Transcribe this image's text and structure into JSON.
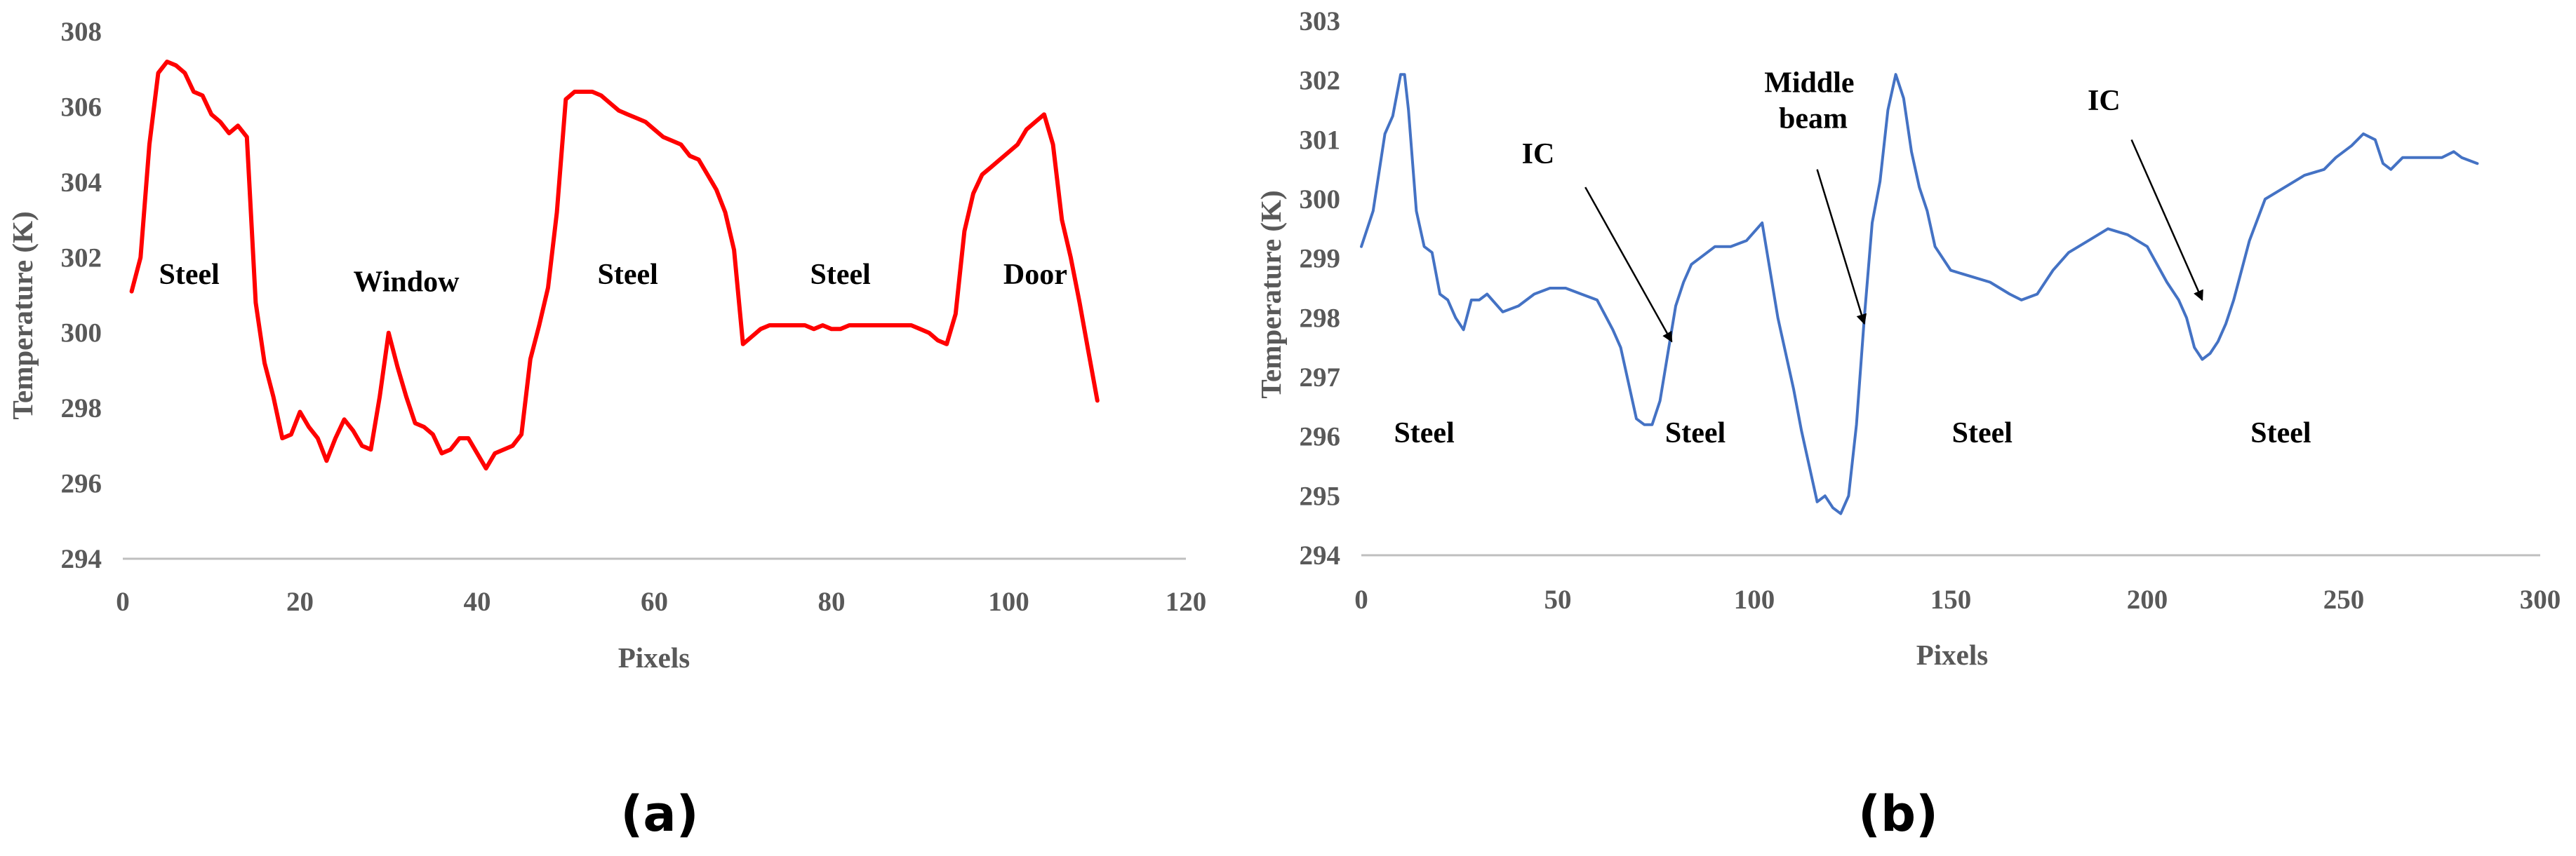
{
  "colors": {
    "series_a": "#ff0000",
    "series_b": "#4472c4",
    "axis": "#bfbfbf",
    "text": "#595959"
  },
  "chart_data": [
    {
      "type": "line",
      "caption": "(a)",
      "xlabel": "Pixels",
      "ylabel": "Temperature (K)",
      "xlim": [
        0,
        120
      ],
      "ylim": [
        294,
        308
      ],
      "xticks": [
        0,
        20,
        40,
        60,
        80,
        100,
        120
      ],
      "yticks": [
        294,
        296,
        298,
        300,
        302,
        304,
        306,
        308
      ],
      "grid": false,
      "series": [
        {
          "color": "#ff0000",
          "x": [
            1,
            2,
            3,
            4,
            5,
            6,
            7,
            8,
            9,
            10,
            11,
            12,
            13,
            14,
            15,
            16,
            17,
            18,
            19,
            20,
            21,
            22,
            23,
            24,
            25,
            26,
            27,
            28,
            29,
            30,
            31,
            32,
            33,
            34,
            35,
            36,
            37,
            38,
            39,
            40,
            41,
            42,
            43,
            44,
            45,
            46,
            47,
            48,
            49,
            50,
            51,
            52,
            53,
            54,
            55,
            56,
            57,
            58,
            59,
            60,
            61,
            62,
            63,
            64,
            65,
            66,
            67,
            68,
            69,
            70,
            71,
            72,
            73,
            74,
            75,
            76,
            77,
            78,
            79,
            80,
            81,
            82,
            83,
            84,
            85,
            86,
            87,
            88,
            89,
            90,
            91,
            92,
            93,
            94,
            95,
            96,
            97,
            98,
            99,
            100,
            101,
            102,
            103,
            104,
            105,
            106,
            107,
            108,
            109,
            110
          ],
          "y": [
            301.1,
            302.0,
            305.0,
            306.9,
            307.2,
            307.1,
            306.9,
            306.4,
            306.3,
            305.8,
            305.6,
            305.3,
            305.5,
            305.2,
            300.8,
            299.2,
            298.3,
            297.2,
            297.3,
            297.9,
            297.5,
            297.2,
            296.6,
            297.2,
            297.7,
            297.4,
            297.0,
            296.9,
            298.3,
            300.0,
            299.1,
            298.3,
            297.6,
            297.5,
            297.3,
            296.8,
            296.9,
            297.2,
            297.2,
            296.8,
            296.4,
            296.8,
            296.9,
            297.0,
            297.3,
            299.3,
            300.2,
            301.2,
            303.2,
            306.2,
            306.4,
            306.4,
            306.4,
            306.3,
            306.1,
            305.9,
            305.8,
            305.7,
            305.6,
            305.4,
            305.2,
            305.1,
            305.0,
            304.7,
            304.6,
            304.2,
            303.8,
            303.2,
            302.2,
            299.7,
            299.9,
            300.1,
            300.2,
            300.2,
            300.2,
            300.2,
            300.2,
            300.1,
            300.2,
            300.1,
            300.1,
            300.2,
            300.2,
            300.2,
            300.2,
            300.2,
            300.2,
            300.2,
            300.2,
            300.1,
            300.0,
            299.8,
            299.7,
            300.5,
            302.7,
            303.7,
            304.2,
            304.4,
            304.6,
            304.8,
            305.0,
            305.4,
            305.6,
            305.8,
            305.0,
            303.0,
            302.0,
            300.8,
            299.5,
            298.2
          ]
        }
      ],
      "annotations": [
        {
          "text": "Steel",
          "x": 7.5,
          "y": 301.3
        },
        {
          "text": "Window",
          "x": 32,
          "y": 301.1
        },
        {
          "text": "Steel",
          "x": 57,
          "y": 301.3
        },
        {
          "text": "Steel",
          "x": 81,
          "y": 301.3
        },
        {
          "text": "Door",
          "x": 103,
          "y": 301.3
        }
      ]
    },
    {
      "type": "line",
      "caption": "(b)",
      "xlabel": "Pixels",
      "ylabel": "Temperature (K)",
      "xlim": [
        0,
        300
      ],
      "ylim": [
        294,
        303
      ],
      "xticks": [
        0,
        50,
        100,
        150,
        200,
        250,
        300
      ],
      "yticks": [
        294,
        295,
        296,
        297,
        298,
        299,
        300,
        301,
        302,
        303
      ],
      "grid": false,
      "series": [
        {
          "color": "#4472c4",
          "x": [
            0,
            3,
            6,
            8,
            10,
            11,
            12,
            14,
            16,
            18,
            20,
            22,
            24,
            26,
            28,
            30,
            32,
            36,
            40,
            44,
            48,
            52,
            56,
            60,
            64,
            66,
            68,
            70,
            72,
            74,
            76,
            78,
            80,
            82,
            84,
            86,
            88,
            90,
            94,
            98,
            102,
            106,
            108,
            110,
            112,
            114,
            116,
            118,
            120,
            122,
            124,
            126,
            128,
            130,
            132,
            134,
            136,
            138,
            140,
            142,
            144,
            146,
            150,
            155,
            160,
            165,
            168,
            172,
            176,
            180,
            185,
            190,
            195,
            200,
            205,
            208,
            210,
            212,
            214,
            216,
            218,
            220,
            222,
            226,
            230,
            235,
            240,
            245,
            248,
            252,
            255,
            258,
            260,
            262,
            265,
            270,
            275,
            278,
            280,
            284
          ],
          "y": [
            299.2,
            299.8,
            301.1,
            301.4,
            302.1,
            302.1,
            301.5,
            299.8,
            299.2,
            299.1,
            298.4,
            298.3,
            298.0,
            297.8,
            298.3,
            298.3,
            298.4,
            298.1,
            298.2,
            298.4,
            298.5,
            298.5,
            298.4,
            298.3,
            297.8,
            297.5,
            296.9,
            296.3,
            296.2,
            296.2,
            296.6,
            297.4,
            298.2,
            298.6,
            298.9,
            299.0,
            299.1,
            299.2,
            299.2,
            299.3,
            299.6,
            298.0,
            297.4,
            296.8,
            296.1,
            295.5,
            294.9,
            295.0,
            294.8,
            294.7,
            295.0,
            296.2,
            298.0,
            299.6,
            300.3,
            301.5,
            302.1,
            301.7,
            300.8,
            300.2,
            299.8,
            299.2,
            298.8,
            298.7,
            298.6,
            298.4,
            298.3,
            298.4,
            298.8,
            299.1,
            299.3,
            299.5,
            299.4,
            299.2,
            298.6,
            298.3,
            298.0,
            297.5,
            297.3,
            297.4,
            297.6,
            297.9,
            298.3,
            299.3,
            300.0,
            300.2,
            300.4,
            300.5,
            300.7,
            300.9,
            301.1,
            301.0,
            300.6,
            300.5,
            300.7,
            300.7,
            300.7,
            300.8,
            300.7,
            300.6
          ]
        }
      ],
      "annotations": [
        {
          "text": "Steel",
          "x": 16,
          "y": 295.9
        },
        {
          "text": "Steel",
          "x": 85,
          "y": 295.9
        },
        {
          "text": "Steel",
          "x": 158,
          "y": 295.9
        },
        {
          "text": "Steel",
          "x": 234,
          "y": 295.9
        },
        {
          "text": "IC",
          "x": 45,
          "y": 300.6
        },
        {
          "text": "IC",
          "x": 189,
          "y": 301.5
        },
        {
          "text": "Middle",
          "x": 114,
          "y": 301.8
        },
        {
          "text": "beam",
          "x": 115,
          "y": 301.2
        }
      ],
      "arrows": [
        {
          "from": [
            57,
            300.2
          ],
          "to": [
            79,
            297.6
          ]
        },
        {
          "from": [
            196,
            301.0
          ],
          "to": [
            214,
            298.3
          ]
        },
        {
          "from": [
            116,
            300.5
          ],
          "to": [
            128,
            297.9
          ]
        }
      ]
    }
  ]
}
